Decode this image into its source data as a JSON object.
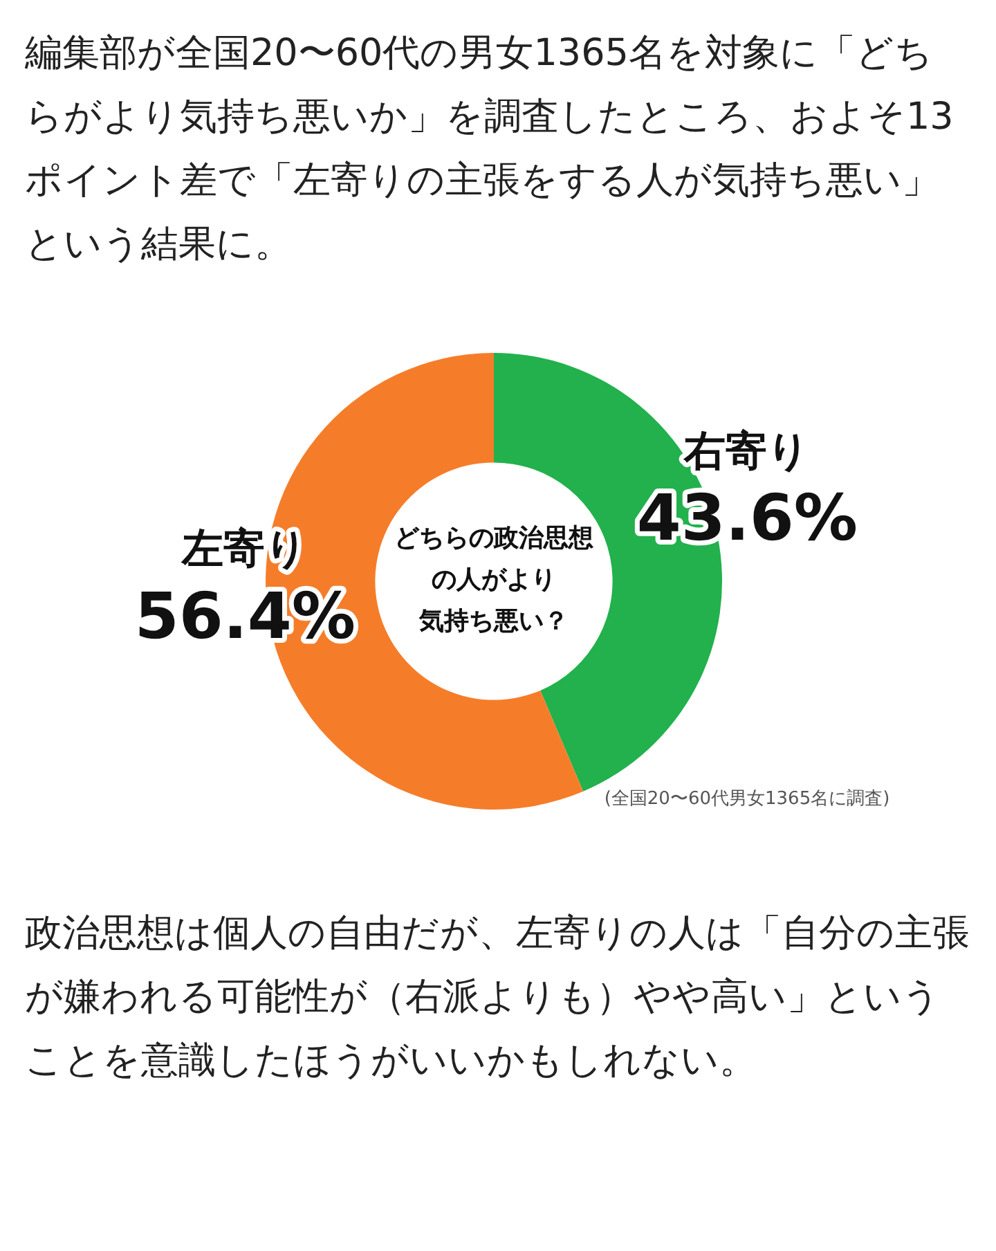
{
  "chart_data": {
    "type": "donut",
    "subtitle": "編集部が全国20〜60代の男女1365名を対象に「どちらがより気持ち悪いか」を調査したところ、およそ13ポイント差で「左寄りの主張をする人が気持ち悪い」という結果に。",
    "title": "どちらの政治思想の人がより気持ち悪い？",
    "categories": [
      "右寄り",
      "左寄り"
    ],
    "values": [
      43.6,
      56.4
    ],
    "value_labels": [
      "43.6%",
      "56.4%"
    ],
    "colors": [
      "#22b14c",
      "#f57d2a"
    ],
    "annotations": [
      "(全国20〜60代男女1365名に調査)",
      "政治思想は個人の自由だが、左寄りの人は「自分の主張が嫌われる可能性が（右派よりも）やや高い」ということを意識したほうがいいかもしれない。"
    ]
  }
}
